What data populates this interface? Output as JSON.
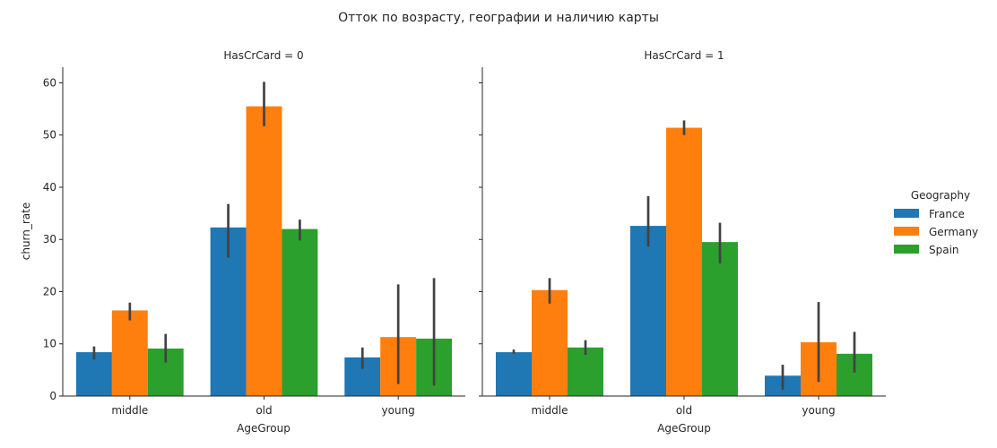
{
  "title": "Отток по возрасту, географии и наличию карты",
  "legend": {
    "title": "Geography",
    "entries": [
      {
        "label": "France",
        "color": "#1f77b4"
      },
      {
        "label": "Germany",
        "color": "#ff7f0e"
      },
      {
        "label": "Spain",
        "color": "#2ca02c"
      }
    ]
  },
  "chart_data": [
    {
      "type": "bar",
      "title": "HasCrCard = 0",
      "xlabel": "AgeGroup",
      "ylabel": "churn_rate",
      "ylim": [
        0,
        63
      ],
      "yticks": [
        0,
        10,
        20,
        30,
        40,
        50,
        60
      ],
      "categories": [
        "middle",
        "old",
        "young"
      ],
      "series": [
        {
          "name": "France",
          "color": "#1f77b4",
          "values": [
            8.4,
            32.3,
            7.4
          ],
          "ci": [
            [
              7.0,
              9.5
            ],
            [
              26.5,
              36.8
            ],
            [
              5.2,
              9.3
            ]
          ]
        },
        {
          "name": "Germany",
          "color": "#ff7f0e",
          "values": [
            16.4,
            55.5,
            11.3
          ],
          "ci": [
            [
              14.5,
              17.9
            ],
            [
              51.7,
              60.2
            ],
            [
              2.3,
              21.4
            ]
          ]
        },
        {
          "name": "Spain",
          "color": "#2ca02c",
          "values": [
            9.1,
            32.0,
            11.0
          ],
          "ci": [
            [
              6.4,
              11.9
            ],
            [
              29.8,
              33.8
            ],
            [
              2.0,
              22.6
            ]
          ]
        }
      ]
    },
    {
      "type": "bar",
      "title": "HasCrCard = 1",
      "xlabel": "AgeGroup",
      "ylabel": "",
      "ylim": [
        0,
        63
      ],
      "yticks": [
        0,
        10,
        20,
        30,
        40,
        50,
        60
      ],
      "categories": [
        "middle",
        "old",
        "young"
      ],
      "series": [
        {
          "name": "France",
          "color": "#1f77b4",
          "values": [
            8.4,
            32.6,
            3.9
          ],
          "ci": [
            [
              8.1,
              8.9
            ],
            [
              28.6,
              38.3
            ],
            [
              1.2,
              6.0
            ]
          ]
        },
        {
          "name": "Germany",
          "color": "#ff7f0e",
          "values": [
            20.3,
            51.4,
            10.3
          ],
          "ci": [
            [
              17.7,
              22.6
            ],
            [
              50.0,
              52.8
            ],
            [
              2.7,
              18.0
            ]
          ]
        },
        {
          "name": "Spain",
          "color": "#2ca02c",
          "values": [
            9.3,
            29.5,
            8.1
          ],
          "ci": [
            [
              7.9,
              10.7
            ],
            [
              25.4,
              33.2
            ],
            [
              4.5,
              12.3
            ]
          ]
        }
      ]
    }
  ]
}
